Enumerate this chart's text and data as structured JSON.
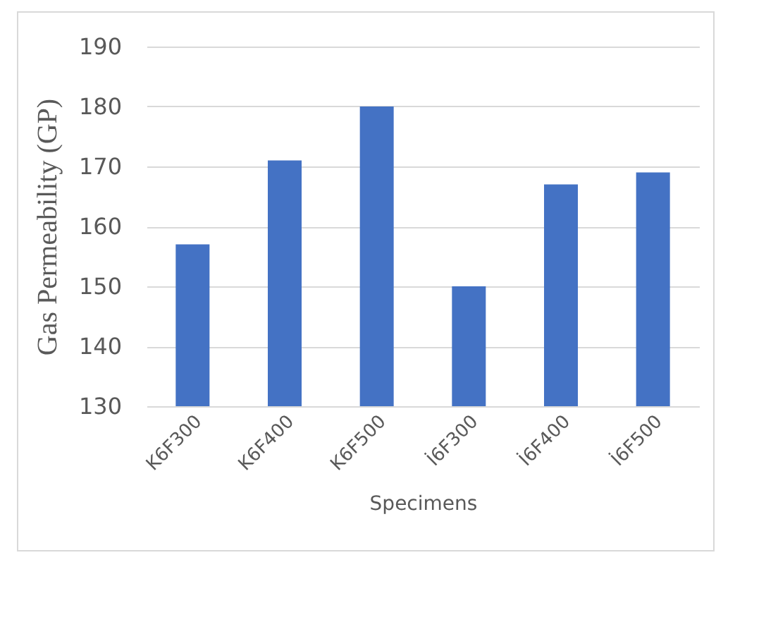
{
  "chart_data": {
    "type": "bar",
    "xlabel": "Specimens",
    "ylabel": "Gas Permeability (GP)",
    "categories": [
      "K6F300",
      "K6F400",
      "K6F500",
      "İ6F300",
      "İ6F400",
      "İ6F500"
    ],
    "values": [
      157,
      171,
      180,
      150,
      167,
      169
    ],
    "color": "#4472c4",
    "ylim": [
      130,
      190
    ],
    "yticks": [
      130,
      140,
      150,
      160,
      170,
      180,
      190
    ],
    "grid": "y"
  }
}
